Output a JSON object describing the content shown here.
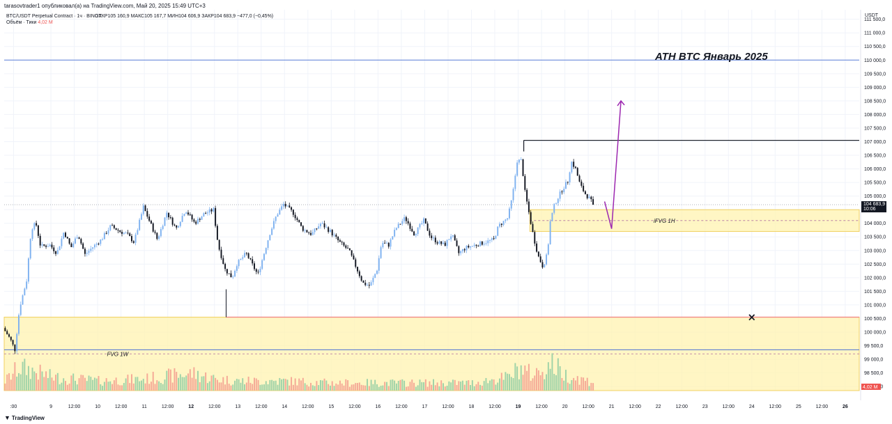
{
  "caption": "tarasovtrader1 опубликовал(а) на TradingView.com, Май 20, 2025 15:49 UTC+3",
  "footer": {
    "logo_icon": "tradingview-logo-icon",
    "brand": "TradingView"
  },
  "colors": {
    "up": "#7fb2f0",
    "down": "#131722",
    "vol_up": "#9fd3a8",
    "vol_down": "#f5a996",
    "zone_fill": "#fff3b0",
    "zone_border": "#f0d060",
    "ath_line": "#5b7fd6",
    "low_line": "#f08080",
    "fvg_line": "#4a6fd4",
    "arrow": "#9c27b0",
    "last_price_bg": "#131722",
    "volume_badge_bg": "#ef5350"
  },
  "chart_data": {
    "type": "candlestick",
    "symbol_line": {
      "title": "BTC/USDT Perpetual Contract · 1ч · BINGX",
      "open": "ОТКР105 160,9",
      "high": "МАКС105 167,7",
      "low": "МИН104 606,9",
      "close": "ЗАКР104 683,9",
      "change": "−477,0 (−0,45%)"
    },
    "volume_line": {
      "label": "Объём · Тики",
      "value": "4,02 M"
    },
    "currency": "USDT",
    "y_ticks": [
      "111 500,0",
      "111 000,0",
      "110 500,0",
      "110 000,0",
      "109 500,0",
      "109 000,0",
      "108 500,0",
      "108 000,0",
      "107 500,0",
      "107 000,0",
      "106 500,0",
      "106 000,0",
      "105 500,0",
      "105 000,0",
      "104 500,0",
      "104 000,0",
      "103 500,0",
      "103 000,0",
      "102 500,0",
      "102 000,0",
      "101 500,0",
      "101 000,0",
      "100 500,0",
      "100 000,0",
      "99 500,0",
      "99 000,0",
      "98 500,0",
      "98 000,0"
    ],
    "y_tick_values": [
      111500,
      111000,
      110500,
      110000,
      109500,
      109000,
      108500,
      108000,
      107500,
      107000,
      106500,
      106000,
      105500,
      105000,
      104500,
      104000,
      103500,
      103000,
      102500,
      102000,
      101500,
      101000,
      100500,
      100000,
      99500,
      99000,
      98500,
      98000
    ],
    "ylim": [
      97850,
      111850
    ],
    "x_ticks": [
      {
        "label": ":00",
        "day": 0.2,
        "bold": false
      },
      {
        "label": "9",
        "day": 1.0,
        "bold": false
      },
      {
        "label": "12:00",
        "day": 1.5,
        "bold": false
      },
      {
        "label": "10",
        "day": 2.0,
        "bold": false
      },
      {
        "label": "12:00",
        "day": 2.5,
        "bold": false
      },
      {
        "label": "11",
        "day": 3.0,
        "bold": false
      },
      {
        "label": "12:00",
        "day": 3.5,
        "bold": false
      },
      {
        "label": "12",
        "day": 4.0,
        "bold": true
      },
      {
        "label": "12:00",
        "day": 4.5,
        "bold": false
      },
      {
        "label": "13",
        "day": 5.0,
        "bold": false
      },
      {
        "label": "12:00",
        "day": 5.5,
        "bold": false
      },
      {
        "label": "14",
        "day": 6.0,
        "bold": false
      },
      {
        "label": "12:00",
        "day": 6.5,
        "bold": false
      },
      {
        "label": "15",
        "day": 7.0,
        "bold": false
      },
      {
        "label": "12:00",
        "day": 7.5,
        "bold": false
      },
      {
        "label": "16",
        "day": 8.0,
        "bold": false
      },
      {
        "label": "12:00",
        "day": 8.5,
        "bold": false
      },
      {
        "label": "17",
        "day": 9.0,
        "bold": false
      },
      {
        "label": "12:00",
        "day": 9.5,
        "bold": false
      },
      {
        "label": "18",
        "day": 10.0,
        "bold": false
      },
      {
        "label": "12:00",
        "day": 10.5,
        "bold": false
      },
      {
        "label": "19",
        "day": 11.0,
        "bold": true
      },
      {
        "label": "12:00",
        "day": 11.5,
        "bold": false
      },
      {
        "label": "20",
        "day": 12.0,
        "bold": false
      },
      {
        "label": "12:00",
        "day": 12.5,
        "bold": false
      },
      {
        "label": "21",
        "day": 13.0,
        "bold": false
      },
      {
        "label": "12:00",
        "day": 13.5,
        "bold": false
      },
      {
        "label": "22",
        "day": 14.0,
        "bold": false
      },
      {
        "label": "12:00",
        "day": 14.5,
        "bold": false
      },
      {
        "label": "23",
        "day": 15.0,
        "bold": false
      },
      {
        "label": "12:00",
        "day": 15.5,
        "bold": false
      },
      {
        "label": "24",
        "day": 16.0,
        "bold": false
      },
      {
        "label": "12:00",
        "day": 16.5,
        "bold": false
      },
      {
        "label": "25",
        "day": 17.0,
        "bold": false
      },
      {
        "label": "12:00",
        "day": 17.5,
        "bold": false
      },
      {
        "label": "26",
        "day": 18.0,
        "bold": true
      }
    ],
    "xlim_days": [
      0,
      18.3
    ],
    "candles_end_day": 12.63,
    "price_path": [
      [
        0.0,
        100150
      ],
      [
        0.15,
        99750
      ],
      [
        0.25,
        99350
      ],
      [
        0.35,
        100900
      ],
      [
        0.5,
        101900
      ],
      [
        0.6,
        103800
      ],
      [
        0.7,
        104000
      ],
      [
        0.8,
        103150
      ],
      [
        1.0,
        103200
      ],
      [
        1.15,
        102900
      ],
      [
        1.3,
        103700
      ],
      [
        1.45,
        103100
      ],
      [
        1.6,
        103600
      ],
      [
        1.75,
        102850
      ],
      [
        1.9,
        103100
      ],
      [
        2.1,
        103400
      ],
      [
        2.3,
        103900
      ],
      [
        2.5,
        103700
      ],
      [
        2.65,
        103600
      ],
      [
        2.8,
        103300
      ],
      [
        3.0,
        104600
      ],
      [
        3.15,
        104000
      ],
      [
        3.3,
        103400
      ],
      [
        3.5,
        104400
      ],
      [
        3.7,
        103800
      ],
      [
        3.9,
        104500
      ],
      [
        4.1,
        104000
      ],
      [
        4.3,
        104350
      ],
      [
        4.5,
        104500
      ],
      [
        4.6,
        103200
      ],
      [
        4.75,
        102300
      ],
      [
        4.9,
        102000
      ],
      [
        5.0,
        102500
      ],
      [
        5.2,
        102900
      ],
      [
        5.45,
        102100
      ],
      [
        5.7,
        103600
      ],
      [
        5.85,
        104300
      ],
      [
        6.0,
        104700
      ],
      [
        6.2,
        104400
      ],
      [
        6.4,
        103800
      ],
      [
        6.6,
        103600
      ],
      [
        6.8,
        104000
      ],
      [
        7.0,
        103700
      ],
      [
        7.2,
        103300
      ],
      [
        7.4,
        103000
      ],
      [
        7.55,
        102400
      ],
      [
        7.7,
        101800
      ],
      [
        7.85,
        101700
      ],
      [
        8.0,
        102300
      ],
      [
        8.1,
        103300
      ],
      [
        8.25,
        103200
      ],
      [
        8.4,
        103800
      ],
      [
        8.6,
        104200
      ],
      [
        8.8,
        103600
      ],
      [
        9.0,
        104100
      ],
      [
        9.15,
        103500
      ],
      [
        9.3,
        103300
      ],
      [
        9.45,
        103200
      ],
      [
        9.6,
        103600
      ],
      [
        9.75,
        102900
      ],
      [
        9.9,
        103100
      ],
      [
        10.1,
        103200
      ],
      [
        10.3,
        103300
      ],
      [
        10.5,
        103400
      ],
      [
        10.6,
        103900
      ],
      [
        10.8,
        104200
      ],
      [
        10.9,
        105000
      ],
      [
        11.0,
        106300
      ],
      [
        11.1,
        106300
      ],
      [
        11.15,
        105300
      ],
      [
        11.25,
        104400
      ],
      [
        11.35,
        103500
      ],
      [
        11.45,
        102800
      ],
      [
        11.55,
        102400
      ],
      [
        11.65,
        102900
      ],
      [
        11.7,
        104000
      ],
      [
        11.8,
        104700
      ],
      [
        11.95,
        105200
      ],
      [
        12.1,
        105600
      ],
      [
        12.15,
        106300
      ],
      [
        12.25,
        106000
      ],
      [
        12.35,
        105400
      ],
      [
        12.45,
        105100
      ],
      [
        12.55,
        104900
      ],
      [
        12.63,
        104684
      ]
    ],
    "volume_profile_path": [
      [
        0.0,
        0.25
      ],
      [
        0.3,
        0.6
      ],
      [
        0.5,
        0.55
      ],
      [
        1.0,
        0.35
      ],
      [
        2.0,
        0.25
      ],
      [
        3.0,
        0.3
      ],
      [
        4.0,
        0.45
      ],
      [
        4.5,
        0.3
      ],
      [
        5.0,
        0.25
      ],
      [
        6.0,
        0.25
      ],
      [
        7.0,
        0.2
      ],
      [
        8.0,
        0.2
      ],
      [
        9.0,
        0.2
      ],
      [
        10.0,
        0.2
      ],
      [
        10.8,
        0.35
      ],
      [
        11.0,
        0.6
      ],
      [
        11.3,
        0.4
      ],
      [
        11.7,
        0.7
      ],
      [
        12.0,
        0.4
      ],
      [
        12.63,
        0.2
      ]
    ],
    "levels": [
      {
        "name": "ath-line",
        "price": 110000
      },
      {
        "name": "range-high-line",
        "price": 107050,
        "from_day": 11.12
      },
      {
        "name": "range-low-line",
        "price": 100550,
        "from_day": 4.75
      },
      {
        "name": "fvg-1w-upper-line",
        "price": 99350
      },
      {
        "name": "current-price-line",
        "price": 104684
      }
    ],
    "zones": [
      {
        "name": "fvg-1w-zone",
        "label": "FVG 1W",
        "top": 100550,
        "bottom": 97700,
        "from_day": 0.0,
        "mid": 99200
      },
      {
        "name": "ifvg-1h-zone",
        "label": "iFVG 1H",
        "top": 104500,
        "bottom": 103700,
        "from_day": 11.25,
        "mid": 104100
      }
    ],
    "forecast_path": [
      [
        12.85,
        104800
      ],
      [
        13.0,
        103800
      ],
      [
        13.2,
        108500
      ]
    ],
    "annotations": {
      "ath_text": "ATH BTC Январь 2025",
      "last_price_label": "104 683,9",
      "last_price_timer": "10:06",
      "volume_axis_label": "4,02 M",
      "target_marker": "×"
    }
  }
}
